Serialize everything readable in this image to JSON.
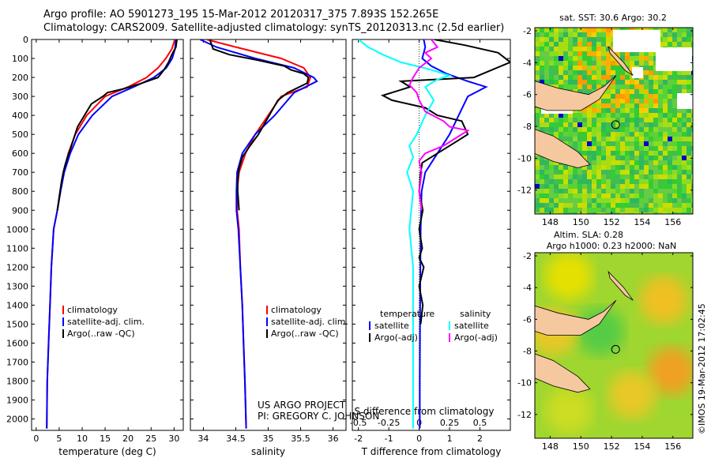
{
  "header": {
    "line1": "Argo profile: AO 5901273_195 15-Mar-2012 20120317_375 7.893S 152.265E",
    "line2": "Climatology: CARS2009. Satellite-adjusted climatology: synTS_20120313.nc (2.5d earlier)"
  },
  "chart_data": [
    {
      "type": "line",
      "title": "",
      "xlabel": "temperature (deg C)",
      "ylabel": "",
      "xlim": [
        -1,
        32
      ],
      "ylim": [
        2060,
        0
      ],
      "xticks": [
        0,
        5,
        10,
        15,
        20,
        25,
        30
      ],
      "yticks": [
        0,
        100,
        200,
        300,
        400,
        500,
        600,
        700,
        800,
        900,
        1000,
        1100,
        1200,
        1300,
        1400,
        1500,
        1600,
        1700,
        1800,
        1900,
        2000
      ],
      "legend": [
        {
          "label": "climatology",
          "color": "#ff0000"
        },
        {
          "label": "satellite-adj. clim.",
          "color": "#0000ff"
        },
        {
          "label": "Argo(..raw -QC)",
          "color": "#000000"
        }
      ],
      "series": [
        {
          "name": "climatology",
          "color": "#ff0000",
          "x": [
            30.2,
            29.5,
            28.2,
            26.5,
            24,
            20,
            15,
            11,
            8.5,
            7,
            6,
            5.2,
            4.6,
            3.8,
            3.3,
            3,
            2.7,
            2.4,
            2.3
          ],
          "y": [
            0,
            50,
            100,
            150,
            200,
            250,
            300,
            400,
            500,
            600,
            700,
            800,
            900,
            1000,
            1200,
            1400,
            1600,
            1800,
            2050
          ]
        },
        {
          "name": "satellite-adj. clim.",
          "color": "#0000ff",
          "x": [
            30.4,
            30.2,
            29.6,
            28.3,
            25.6,
            21.2,
            16.5,
            12.2,
            9.2,
            7.4,
            6.1,
            5.3,
            4.6,
            3.8,
            3.3,
            3,
            2.7,
            2.4,
            2.3
          ],
          "y": [
            0,
            50,
            100,
            150,
            200,
            250,
            300,
            400,
            500,
            600,
            700,
            800,
            900,
            1000,
            1200,
            1400,
            1600,
            1800,
            2050
          ]
        },
        {
          "name": "Argo(..raw -QC)",
          "color": "#000000",
          "x": [
            30.6,
            30.4,
            29.5,
            28.8,
            27.8,
            26.5,
            23,
            19,
            15.5,
            14.5,
            12,
            10.5,
            9,
            8.2,
            7.4,
            6.8,
            6.3,
            5.9,
            5.5,
            5.2,
            4.6
          ],
          "y": [
            0,
            40,
            80,
            120,
            160,
            200,
            230,
            260,
            280,
            300,
            340,
            400,
            460,
            520,
            580,
            620,
            660,
            700,
            750,
            800,
            900
          ]
        }
      ]
    },
    {
      "type": "line",
      "title": "",
      "xlabel": "salinity",
      "ylabel": "",
      "xlim": [
        33.8,
        36.2
      ],
      "ylim": [
        2060,
        0
      ],
      "xticks": [
        34,
        34.5,
        35,
        35.5,
        36
      ],
      "legend": [
        {
          "label": "climatology",
          "color": "#ff0000"
        },
        {
          "label": "satellite-adj. clim.",
          "color": "#0000ff"
        },
        {
          "label": "Argo(..raw -QC)",
          "color": "#000000"
        }
      ],
      "series": [
        {
          "name": "climatology",
          "color": "#ff0000",
          "x": [
            34.05,
            34.5,
            35.2,
            35.55,
            35.65,
            35.6,
            35.2,
            35.0,
            34.8,
            34.65,
            34.55,
            34.52,
            34.52,
            34.55,
            34.57,
            34.6,
            34.62,
            34.64,
            34.66
          ],
          "y": [
            0,
            40,
            100,
            150,
            200,
            250,
            300,
            400,
            500,
            600,
            700,
            800,
            900,
            1000,
            1200,
            1400,
            1600,
            1800,
            2050
          ]
        },
        {
          "name": "satellite-adj. clim.",
          "color": "#0000ff",
          "x": [
            33.95,
            34.2,
            34.8,
            35.4,
            35.7,
            35.75,
            35.4,
            35.1,
            34.8,
            34.6,
            34.52,
            34.51,
            34.51,
            34.54,
            34.57,
            34.6,
            34.62,
            34.64,
            34.66
          ],
          "y": [
            0,
            40,
            100,
            150,
            200,
            220,
            280,
            400,
            500,
            600,
            700,
            800,
            900,
            1000,
            1200,
            1400,
            1600,
            1800,
            2050
          ]
        },
        {
          "name": "Argo(..raw -QC)",
          "color": "#000000",
          "x": [
            34.1,
            34.15,
            34.4,
            34.85,
            35.25,
            35.35,
            35.55,
            35.62,
            35.6,
            35.3,
            35.15,
            35.05,
            34.95,
            34.85,
            34.72,
            34.6,
            34.55,
            34.53,
            34.53,
            34.55
          ],
          "y": [
            0,
            50,
            80,
            110,
            140,
            160,
            180,
            200,
            230,
            280,
            320,
            380,
            440,
            500,
            560,
            620,
            680,
            740,
            800,
            900
          ]
        }
      ]
    },
    {
      "type": "line",
      "title": "",
      "xlabel": "T difference from climatology",
      "xlabel_top": "S difference from climatology",
      "ylabel": "",
      "xlim": [
        -2.2,
        3.0
      ],
      "ylim": [
        2060,
        0
      ],
      "xticks": [
        -2,
        -1,
        0,
        1,
        2
      ],
      "xticks_S": [
        -0.5,
        -0.25,
        0,
        0.25,
        0.5
      ],
      "xticks_S_labels": [
        "-0.5",
        "-0.25",
        "0",
        "0.25",
        "0.5"
      ],
      "legend": [
        {
          "label": "temperature",
          "color": ""
        },
        {
          "label": "satellite",
          "color": "#0000ff"
        },
        {
          "label": "Argo(-adj)",
          "color": "#000000"
        },
        {
          "label": "salinity",
          "color": ""
        },
        {
          "label": "satellite",
          "color": "#00ffff"
        },
        {
          "label": "Argo(-adj)",
          "color": "#ff00ff"
        }
      ],
      "series": [
        {
          "name": "T satellite",
          "color": "#0000ff",
          "x": [
            0.15,
            0.2,
            0.1,
            0.4,
            0.9,
            1.6,
            2.2,
            1.6,
            1.3,
            1.0,
            0.8,
            0.6,
            0.4,
            0.2,
            0.08,
            0.05,
            0.03,
            0.02,
            0.02
          ],
          "y": [
            0,
            40,
            100,
            140,
            180,
            220,
            250,
            300,
            400,
            500,
            550,
            600,
            650,
            700,
            800,
            1000,
            1400,
            1800,
            2050
          ]
        },
        {
          "name": "T Argo(-adj)",
          "color": "#000000",
          "x": [
            0.5,
            1.5,
            2.6,
            3.0,
            1.8,
            -0.6,
            -0.3,
            -1.2,
            -0.9,
            0.2,
            0.6,
            1.4,
            1.6,
            1.2,
            0.6,
            0.1,
            0.05,
            0.0,
            0.12,
            0.0,
            0.1,
            0.0,
            0.15,
            0.0,
            0.12,
            0.05
          ],
          "y": [
            0,
            30,
            70,
            120,
            200,
            220,
            250,
            295,
            320,
            360,
            400,
            430,
            500,
            540,
            600,
            650,
            700,
            800,
            900,
            1000,
            1100,
            1150,
            1200,
            1300,
            1400,
            1500
          ]
        },
        {
          "name": "S satellite",
          "color": "#00ffff",
          "x": [
            -0.5,
            -0.42,
            -0.3,
            -0.15,
            0.1,
            0.25,
            0.15,
            0.05,
            0.12,
            0.05,
            -0.02,
            -0.08,
            -0.05,
            -0.1,
            -0.05,
            -0.08,
            -0.05,
            -0.05,
            -0.05,
            -0.05
          ],
          "y": [
            0,
            40,
            80,
            120,
            160,
            190,
            210,
            250,
            320,
            400,
            500,
            560,
            620,
            700,
            800,
            1000,
            1200,
            1400,
            1800,
            2050
          ]
        },
        {
          "name": "S Argo(-adj)",
          "color": "#ff00ff",
          "x": [
            0.1,
            0.15,
            0.05,
            0.1,
            0.0,
            -0.05,
            -0.08,
            -0.02,
            0.0,
            0.05,
            0.2,
            0.25,
            0.4,
            0.3,
            0.2,
            0.05,
            0.0,
            0.02,
            0.0,
            0.02
          ],
          "y": [
            0,
            40,
            70,
            100,
            150,
            200,
            240,
            280,
            320,
            380,
            430,
            460,
            480,
            520,
            560,
            600,
            640,
            700,
            800,
            900
          ]
        }
      ]
    }
  ],
  "watermark": {
    "text1": "US ARGO PROJECT",
    "text2": "PI: GREGORY C. JOHNSON"
  },
  "maps": {
    "sst": {
      "title": "sat. SST: 30.6 Argo: 30.2",
      "lat_ticks": [
        -2,
        -4,
        -6,
        -8,
        -10,
        -12
      ],
      "lon_ticks": [
        148,
        150,
        152,
        154,
        156
      ],
      "lat_range": [
        -13.5,
        -1.8
      ],
      "lon_range": [
        147,
        157.3
      ],
      "argo_lon": 152.265,
      "argo_lat": -7.893
    },
    "sla": {
      "title1": "Altim. SLA: 0.28",
      "title2": "Argo h1000: 0.23 h2000: NaN",
      "lat_ticks": [
        -2,
        -4,
        -6,
        -8,
        -10,
        -12
      ],
      "lon_ticks": [
        148,
        150,
        152,
        154,
        156
      ],
      "lat_range": [
        -13.5,
        -1.8
      ],
      "lon_range": [
        147,
        157.3
      ],
      "argo_lon": 152.265,
      "argo_lat": -7.893
    }
  },
  "side_label": "©IMOS 19-Mar-2012 17:02:45"
}
